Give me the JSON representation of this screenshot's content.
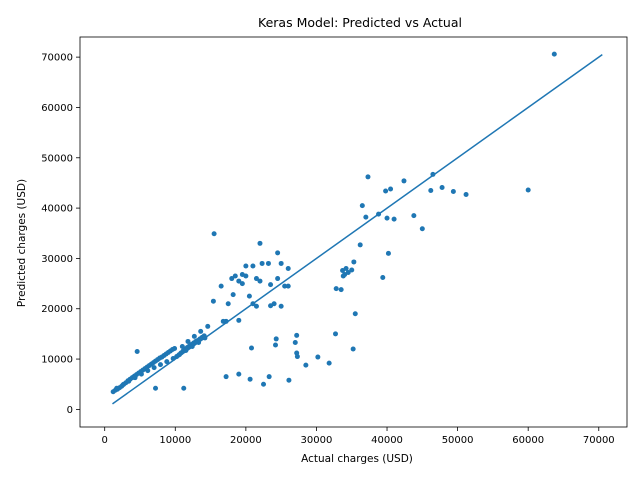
{
  "chart_data": {
    "type": "scatter",
    "title": "Keras Model: Predicted vs Actual",
    "xlabel": "Actual charges (USD)",
    "ylabel": "Predicted charges (USD)",
    "xlim": [
      -3500,
      74000
    ],
    "ylim": [
      -3500,
      74000
    ],
    "xticks": [
      0,
      10000,
      20000,
      30000,
      40000,
      50000,
      60000,
      70000
    ],
    "yticks": [
      0,
      10000,
      20000,
      30000,
      40000,
      50000,
      60000,
      70000
    ],
    "xtick_labels": [
      "0",
      "10000",
      "20000",
      "30000",
      "40000",
      "50000",
      "60000",
      "70000"
    ],
    "ytick_labels": [
      "0",
      "10000",
      "20000",
      "30000",
      "40000",
      "50000",
      "60000",
      "70000"
    ],
    "grid": false,
    "color": "#1f77b4",
    "reference_line": {
      "x": [
        1100,
        70500
      ],
      "y": [
        1100,
        70500
      ]
    },
    "points": {
      "x": [
        1200,
        1500,
        1800,
        2100,
        2400,
        2700,
        3000,
        3300,
        3600,
        3900,
        4200,
        4500,
        4800,
        5100,
        5400,
        5700,
        6000,
        6300,
        6600,
        6900,
        7200,
        7500,
        7800,
        8100,
        8400,
        8700,
        9000,
        9300,
        9600,
        9900,
        10200,
        10500,
        10800,
        11100,
        11400,
        11700,
        12000,
        12300,
        12600,
        12900,
        13200,
        13500,
        13800,
        14100,
        1700,
        2600,
        3400,
        4300,
        5200,
        6100,
        7000,
        7900,
        8800,
        9700,
        10600,
        11500,
        12400,
        13300,
        14200,
        11000,
        11800,
        12700,
        13600,
        4600,
        7200,
        11200,
        14600,
        15400,
        15500,
        16500,
        17200,
        17500,
        18000,
        18200,
        18500,
        19000,
        19500,
        20000,
        20500,
        21000,
        21500,
        22000,
        22300,
        23200,
        23500,
        24000,
        24500,
        25000,
        25500,
        26000,
        16800,
        19000,
        19500,
        20000,
        21000,
        21500,
        22000,
        23500,
        24500,
        25000,
        26000,
        20800,
        17200,
        19000,
        20600,
        22500,
        23300,
        24300,
        26100,
        24200,
        27000,
        27200,
        27200,
        27300,
        28500,
        30200,
        31800,
        32700,
        32800,
        33500,
        33700,
        34200,
        34500,
        35200,
        35500,
        35300,
        33800,
        34000,
        35000,
        36200,
        36500,
        37000,
        37300,
        38800,
        39400,
        39800,
        40000,
        40200,
        40500,
        41000,
        42400,
        43800,
        45000,
        46200,
        46500,
        47800,
        49400,
        51200,
        60000,
        63700
      ],
      "y": [
        3500,
        3800,
        4000,
        4300,
        4600,
        5000,
        5300,
        5700,
        6000,
        6300,
        6600,
        6900,
        7200,
        7500,
        7800,
        8100,
        8400,
        8700,
        9000,
        9300,
        9600,
        9900,
        10200,
        10400,
        10700,
        11000,
        11300,
        11600,
        11900,
        12100,
        10500,
        10800,
        11200,
        11600,
        12000,
        12300,
        12600,
        12900,
        13200,
        13500,
        13700,
        14000,
        14300,
        14600,
        4200,
        4900,
        5600,
        6300,
        7000,
        7700,
        8300,
        8900,
        9500,
        10100,
        10900,
        11700,
        12500,
        13300,
        14200,
        12500,
        13500,
        14500,
        15500,
        11500,
        4200,
        4200,
        16500,
        21500,
        34900,
        24500,
        17500,
        21000,
        26000,
        22800,
        26500,
        25500,
        25000,
        28500,
        22500,
        28500,
        26000,
        33000,
        29000,
        29000,
        24800,
        21000,
        31100,
        20500,
        24500,
        28000,
        17500,
        17700,
        26800,
        26500,
        21000,
        20500,
        25500,
        20600,
        26000,
        29000,
        24500,
        12200,
        6500,
        7000,
        6000,
        5000,
        6500,
        14000,
        5800,
        12800,
        13300,
        14700,
        11200,
        10500,
        8800,
        10400,
        9200,
        15000,
        24000,
        23800,
        27600,
        28000,
        27200,
        12000,
        19000,
        29300,
        26500,
        26800,
        27700,
        32700,
        40500,
        38200,
        46200,
        38800,
        26200,
        43400,
        38000,
        31000,
        43800,
        37800,
        45400,
        38500,
        35900,
        43500,
        46700,
        44100,
        43300,
        42700,
        43600,
        70600
      ]
    }
  }
}
